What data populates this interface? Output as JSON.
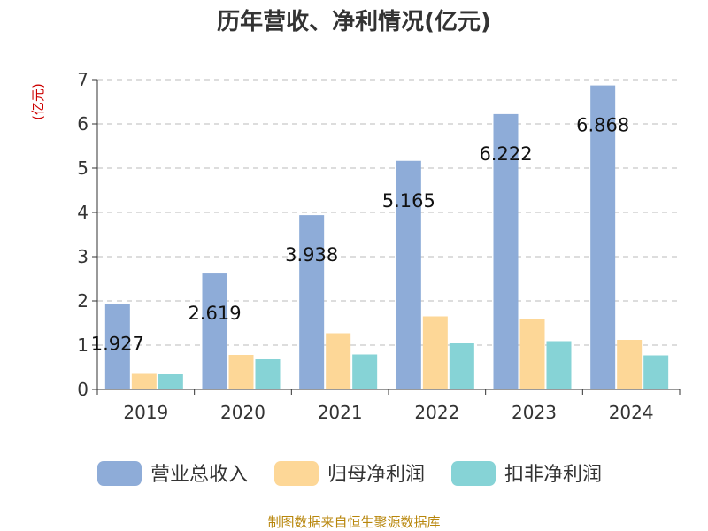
{
  "chart_data": {
    "type": "bar",
    "title": "历年营收、净利情况(亿元)",
    "ylabel": "(亿元)",
    "ylim": [
      0,
      7
    ],
    "yticks": [
      0,
      1,
      2,
      3,
      4,
      5,
      6,
      7
    ],
    "grid": true,
    "legend_position": "bottom",
    "categories": [
      "2019",
      "2020",
      "2021",
      "2022",
      "2023",
      "2024"
    ],
    "series": [
      {
        "name": "营业总收入",
        "color": "#8eacd8",
        "values": [
          1.927,
          2.619,
          3.938,
          5.165,
          6.222,
          6.868
        ],
        "labels": [
          "1.927",
          "2.619",
          "3.938",
          "5.165",
          "6.222",
          "6.868"
        ]
      },
      {
        "name": "归母净利润",
        "color": "#fdd797",
        "values": [
          0.35,
          0.78,
          1.27,
          1.65,
          1.6,
          1.12
        ]
      },
      {
        "name": "扣非净利润",
        "color": "#86d3d6",
        "values": [
          0.34,
          0.68,
          0.79,
          1.04,
          1.09,
          0.77
        ]
      }
    ],
    "source": "制图数据来自恒生聚源数据库"
  }
}
